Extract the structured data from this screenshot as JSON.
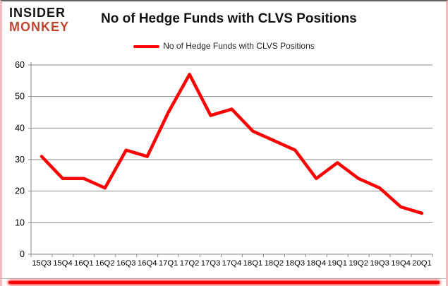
{
  "header": {
    "brand_line1": "INSIDER",
    "brand_line2": "MONKEY",
    "brand_color": "#c0432e",
    "title": "No of Hedge Funds with CLVS Positions"
  },
  "legend": {
    "label": "No of Hedge Funds with CLVS Positions",
    "swatch_color": "#fe0000"
  },
  "chart_data": {
    "type": "line",
    "title": "No of Hedge Funds with CLVS Positions",
    "series": [
      {
        "name": "No of Hedge Funds with CLVS Positions",
        "values": [
          31,
          24,
          24,
          21,
          33,
          31,
          45,
          57,
          44,
          46,
          39,
          36,
          33,
          24,
          29,
          24,
          21,
          15,
          13
        ]
      }
    ],
    "categories": [
      "15Q3",
      "15Q4",
      "16Q1",
      "16Q2",
      "16Q3",
      "16Q4",
      "17Q1",
      "17Q2",
      "17Q3",
      "17Q4",
      "18Q1",
      "18Q2",
      "18Q3",
      "18Q4",
      "19Q1",
      "19Q2",
      "19Q3",
      "19Q4",
      "20Q1"
    ],
    "xlabel": "",
    "ylabel": "",
    "ylim": [
      0,
      60
    ],
    "yticks": [
      0,
      10,
      20,
      30,
      40,
      50,
      60
    ],
    "ytick_step": 10,
    "grid": true,
    "legend_position": "top",
    "line_color": "#fe0000",
    "grid_color": "#8a8a8a"
  },
  "decor": {
    "bottom_bar_color": "#fe0000"
  }
}
